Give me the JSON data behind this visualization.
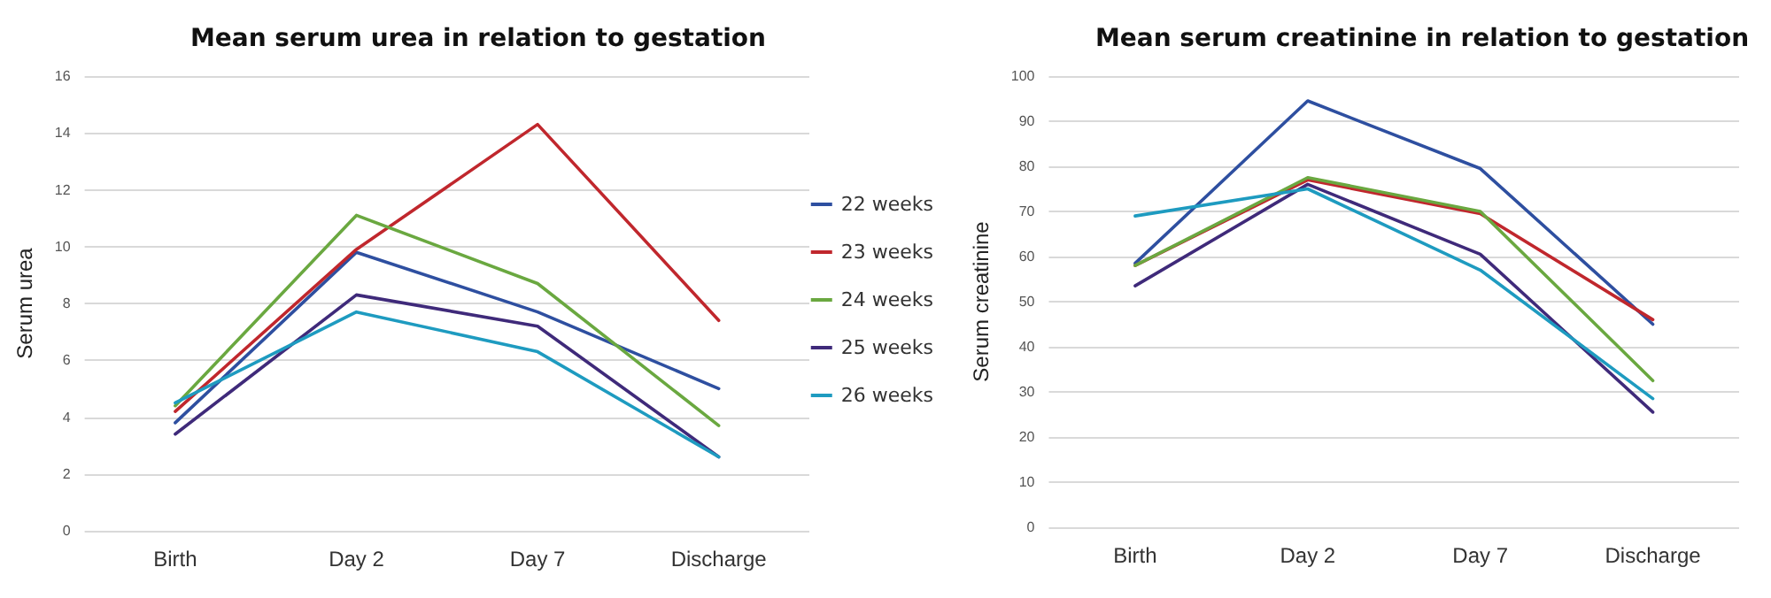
{
  "chart_data": [
    {
      "type": "line",
      "title": "Mean serum urea in relation to gestation",
      "ylabel": "Serum urea",
      "categories": [
        "Birth",
        "Day 2",
        "Day 7",
        "Discharge"
      ],
      "ylim": [
        0,
        16
      ],
      "yticks": [
        0,
        2,
        4,
        6,
        8,
        10,
        12,
        14,
        16
      ],
      "grid": "y",
      "legend": "right",
      "marker": "none",
      "series": [
        {
          "name": "22 weeks",
          "color": "#2e4fa0",
          "values": [
            3.8,
            9.8,
            7.7,
            5.0
          ]
        },
        {
          "name": "23 weeks",
          "color": "#c0272d",
          "values": [
            4.2,
            9.9,
            14.3,
            7.4
          ]
        },
        {
          "name": "24 weeks",
          "color": "#6aa840",
          "values": [
            4.4,
            11.1,
            8.7,
            3.7
          ]
        },
        {
          "name": "25 weeks",
          "color": "#3f2a7a",
          "values": [
            3.4,
            8.3,
            7.2,
            2.6
          ]
        },
        {
          "name": "26 weeks",
          "color": "#1e9bc0",
          "values": [
            4.5,
            7.7,
            6.3,
            2.6
          ]
        }
      ]
    },
    {
      "type": "line",
      "title": "Mean serum creatinine in relation to gestation",
      "ylabel": "Serum creatinine",
      "categories": [
        "Birth",
        "Day 2",
        "Day 7",
        "Discharge"
      ],
      "ylim": [
        0,
        100
      ],
      "yticks": [
        0,
        10,
        20,
        30,
        40,
        50,
        60,
        70,
        80,
        90,
        100
      ],
      "grid": "y",
      "marker": "none",
      "series": [
        {
          "color": "#2e4fa0",
          "values": [
            58.5,
            94.5,
            79.5,
            45
          ]
        },
        {
          "color": "#c0272d",
          "values": [
            58,
            77,
            69.5,
            46
          ]
        },
        {
          "color": "#6aa840",
          "values": [
            58,
            77.5,
            70,
            32.5
          ]
        },
        {
          "color": "#3f2a7a",
          "values": [
            53.5,
            76,
            60.5,
            25.5
          ]
        },
        {
          "color": "#1e9bc0",
          "values": [
            69,
            75,
            57,
            28.5
          ]
        }
      ]
    }
  ]
}
